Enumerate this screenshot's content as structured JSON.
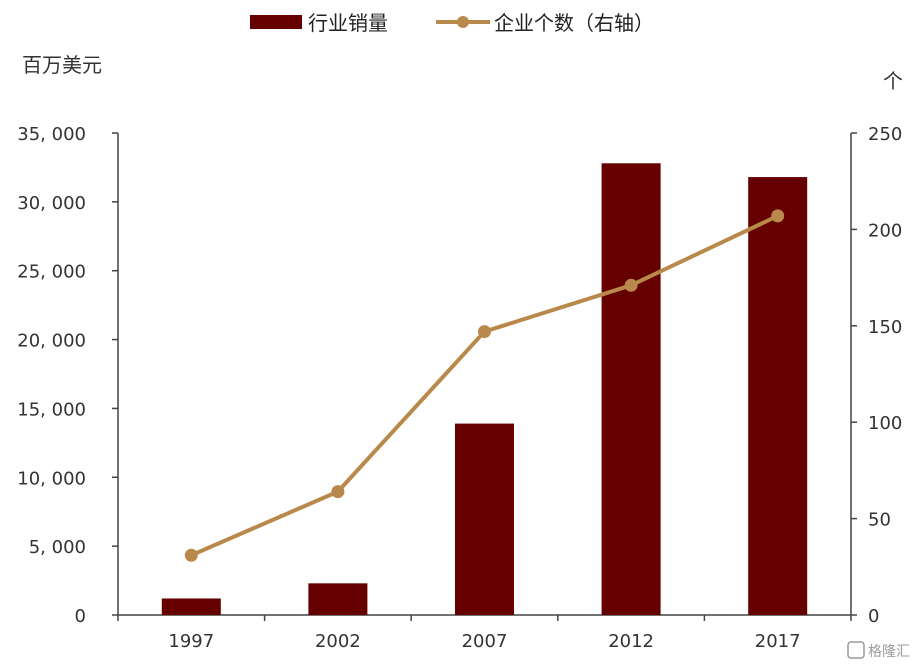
{
  "chart_data": {
    "type": "bar",
    "categories": [
      "1997",
      "2002",
      "2007",
      "2012",
      "2017"
    ],
    "series": [
      {
        "name": "行业销量",
        "type": "bar",
        "axis": "left",
        "color": "#660000",
        "values": [
          1200,
          2300,
          13900,
          32800,
          31800
        ]
      },
      {
        "name": "企业个数（右轴）",
        "type": "line",
        "axis": "right",
        "color": "#B8894A",
        "values": [
          31,
          64,
          147,
          171,
          207
        ]
      }
    ],
    "ylabel": "百万美元",
    "ylabel_right": "个",
    "ylim": [
      0,
      35000
    ],
    "ylim_right": [
      0,
      250
    ],
    "yticks": [
      "0",
      "5, 000",
      "10, 000",
      "15, 000",
      "20, 000",
      "25, 000",
      "30, 000",
      "35, 000"
    ],
    "yticks_right": [
      "0",
      "50",
      "100",
      "150",
      "200",
      "250"
    ],
    "grid": false,
    "legend_position": "top-center"
  },
  "watermark": {
    "text": "格隆汇"
  }
}
